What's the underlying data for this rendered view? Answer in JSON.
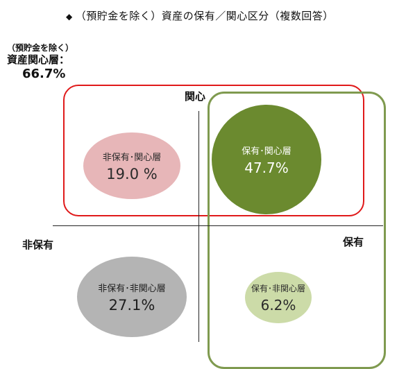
{
  "title": {
    "marker": "◆",
    "text": "（預貯金を除く）資産の保有／関心区分（複数回答）"
  },
  "summary": {
    "line1": "（預貯金を除く）",
    "line2": "資産関心層：",
    "line3": "66.7%"
  },
  "axes": {
    "top": "関心",
    "left": "非保有",
    "right": "保有"
  },
  "quadrants": {
    "top_left": {
      "name": "非保有･関心層",
      "value": "19.0 %",
      "fill": "#e7b6b8"
    },
    "top_right": {
      "name": "保有･関心層",
      "value": "47.7%",
      "fill": "#6b8a2f"
    },
    "bottom_left": {
      "name": "非保有･非関心層",
      "value": "27.1%",
      "fill": "#b4b4b4"
    },
    "bottom_right": {
      "name": "保有･非関心層",
      "value": "6.2%",
      "fill": "#ccdba8"
    }
  },
  "colors": {
    "interest_frame": "#e0191a",
    "holding_frame": "#7f9a4f",
    "axis": "#222222"
  }
}
